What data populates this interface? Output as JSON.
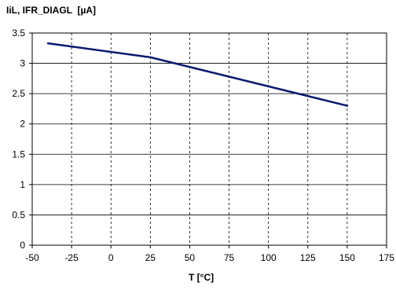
{
  "chart_data": {
    "type": "line",
    "title": "",
    "ylabel": "IiL, IFR_DIAGL  [µA]",
    "xlabel": "T [°C]",
    "xlim": [
      -50,
      175
    ],
    "ylim": [
      0,
      3.5
    ],
    "x_ticks": [
      -50,
      -25,
      0,
      25,
      50,
      75,
      100,
      125,
      150,
      175
    ],
    "x_tick_labels": [
      "-50",
      "-25",
      "0",
      "25",
      "50",
      "75",
      "100",
      "125",
      "150",
      "175"
    ],
    "y_ticks": [
      0,
      0.5,
      1,
      1.5,
      2,
      2.5,
      3,
      3.5
    ],
    "y_tick_labels": [
      "0",
      "0.5",
      "1",
      "1.5",
      "2",
      "2.5",
      "3",
      "3.5"
    ],
    "grid": true,
    "series": [
      {
        "color": "#0a1a6e",
        "x": [
          -40,
          25,
          150
        ],
        "y": [
          3.33,
          3.1,
          2.3
        ]
      }
    ]
  }
}
